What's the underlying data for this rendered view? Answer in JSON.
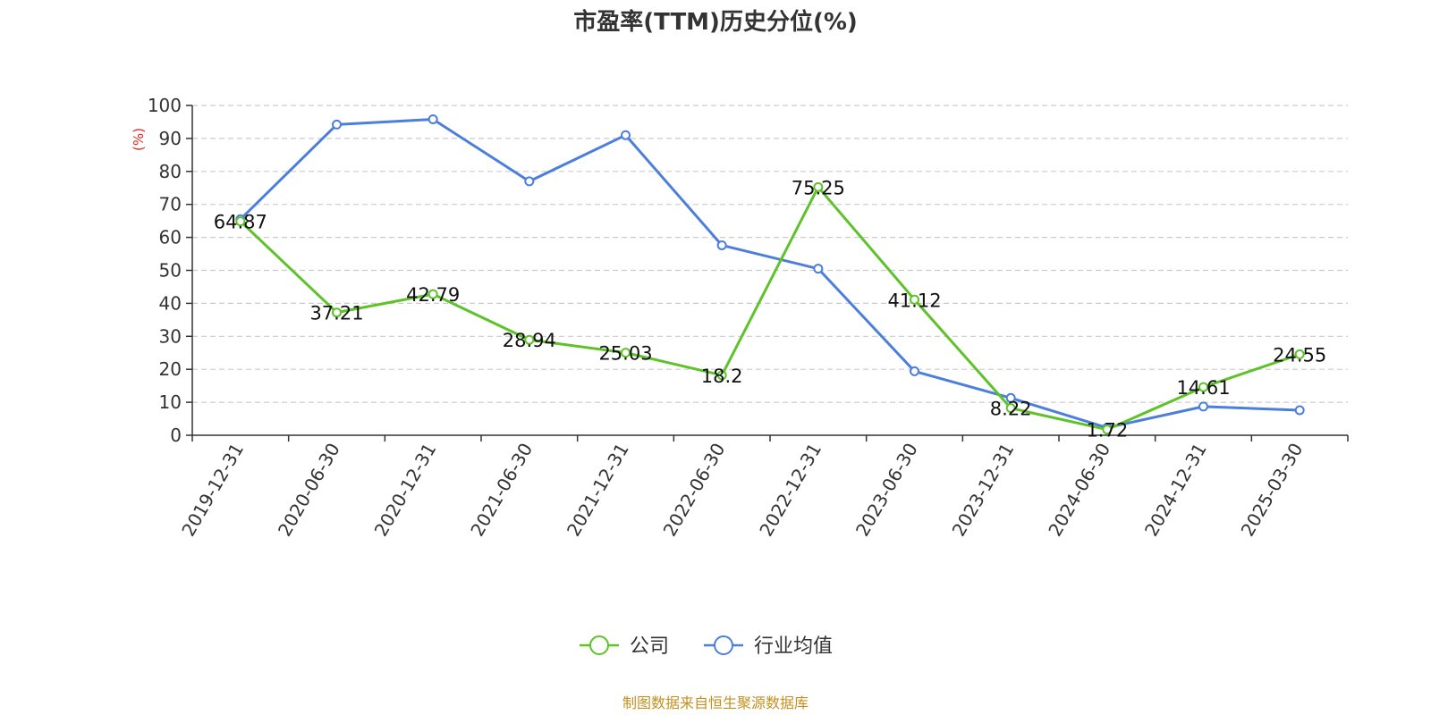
{
  "chart_data": {
    "type": "line",
    "title": "市盈率(TTM)历史分位(%)",
    "ylabel": "(%)",
    "ylim": [
      0,
      100
    ],
    "yticks": [
      0,
      10,
      20,
      30,
      40,
      50,
      60,
      70,
      80,
      90,
      100
    ],
    "grid": true,
    "legend_position": "bottom-center",
    "categories": [
      "2019-12-31",
      "2020-06-30",
      "2020-12-31",
      "2021-06-30",
      "2021-12-31",
      "2022-06-30",
      "2022-12-31",
      "2023-06-30",
      "2023-12-31",
      "2024-06-30",
      "2024-12-31",
      "2025-03-30"
    ],
    "series": [
      {
        "name": "公司",
        "color": "#5ec229",
        "show_labels": true,
        "values": [
          64.87,
          37.21,
          42.79,
          28.94,
          25.03,
          18.2,
          75.25,
          41.12,
          8.22,
          1.72,
          14.61,
          24.55
        ],
        "labels": [
          "64.87",
          "37.21",
          "42.79",
          "28.94",
          "25.03",
          "18.2",
          "75.25",
          "41.12",
          "8.22",
          "1.72",
          "14.61",
          "24.55"
        ]
      },
      {
        "name": "行业均值",
        "color": "#4c7fdb",
        "show_labels": false,
        "values": [
          65.5,
          94.2,
          95.8,
          77,
          91,
          57.6,
          50.5,
          19.4,
          11.3,
          2.3,
          8.7,
          7.6
        ]
      }
    ],
    "source": "制图数据来自恒生聚源数据库",
    "colors": {
      "axis": "#333333",
      "grid": "#cccccc",
      "ylabel": "#e8231f",
      "source": "#c39020"
    }
  }
}
